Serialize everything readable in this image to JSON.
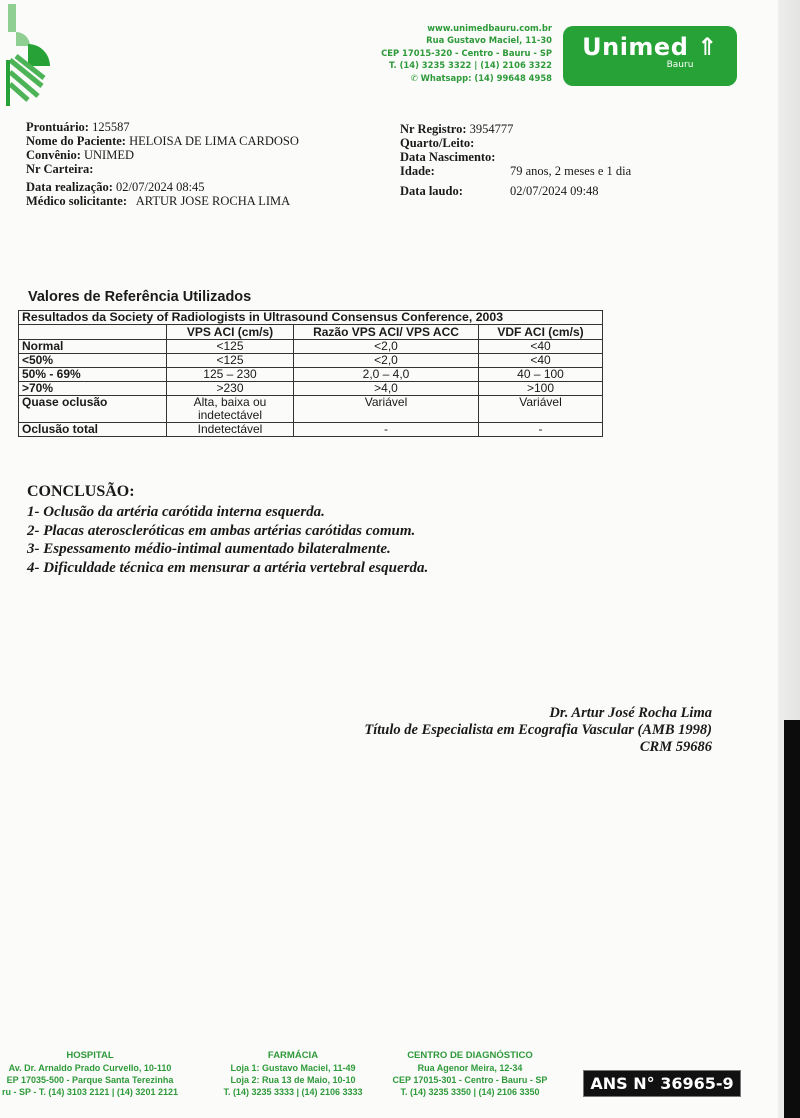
{
  "header": {
    "address_lines": [
      "www.unimedbauru.com.br",
      "Rua Gustavo Maciel, 11-30",
      "CEP 17015-320 - Centro - Bauru - SP",
      "T. (14) 3235 3322 | (14) 2106 3322"
    ],
    "whatsapp": "Whatsapp: (14) 99648 4958",
    "brand": "Unimed",
    "brand_sub": "Bauru",
    "brand_color": "#27a236"
  },
  "patient": {
    "left": [
      {
        "label": "Prontuário:",
        "value": "125587"
      },
      {
        "label": "Nome do Paciente:",
        "value": "HELOISA DE LIMA CARDOSO"
      },
      {
        "label": "Convênio:",
        "value": "UNIMED"
      },
      {
        "label": "Nr Carteira:",
        "value": ""
      },
      {
        "label": "Data realização:",
        "value": "02/07/2024 08:45"
      },
      {
        "label": "Médico solicitante:",
        "value": "ARTUR JOSE ROCHA LIMA"
      }
    ],
    "right": [
      {
        "label": "Nr Registro:",
        "value": "3954777"
      },
      {
        "label": "Quarto/Leito:",
        "value": ""
      },
      {
        "label": "Data Nascimento:",
        "value": ""
      },
      {
        "label": "Idade:",
        "value": "79 anos, 2 meses e 1 dia"
      },
      {
        "label": "Data laudo:",
        "value": "02/07/2024 09:48"
      }
    ]
  },
  "reference": {
    "title": "Valores de Referência Utilizados",
    "table_caption": "Resultados da Society of Radiologists in Ultrasound Consensus Conference, 2003",
    "columns": [
      "",
      "VPS ACI (cm/s)",
      "Razão VPS ACI/ VPS ACC",
      "VDF ACI (cm/s)"
    ],
    "rows": [
      [
        "Normal",
        "<125",
        "<2,0",
        "<40"
      ],
      [
        "<50%",
        "<125",
        "<2,0",
        "<40"
      ],
      [
        "50% - 69%",
        "125 – 230",
        "2,0 – 4,0",
        "40 – 100"
      ],
      [
        ">70%",
        ">230",
        ">4,0",
        ">100"
      ],
      [
        "Quase oclusão",
        "Alta, baixa ou indetectável",
        "Variável",
        "Variável"
      ],
      [
        "Oclusão total",
        "Indetectável",
        "-",
        "-"
      ]
    ]
  },
  "conclusion": {
    "title": "CONCLUSÃO:",
    "items": [
      "1- Oclusão da artéria carótida interna esquerda.",
      "2- Placas ateroscleróticas em ambas artérias carótidas comum.",
      "3- Espessamento médio-intimal aumentado bilateralmente.",
      "4- Dificuldade técnica em mensurar a artéria vertebral esquerda."
    ]
  },
  "signature": [
    "Dr. Artur José Rocha Lima",
    "Título de Especialista em Ecografia Vascular (AMB 1998)",
    "CRM 59686"
  ],
  "footer": {
    "hospital": [
      "HOSPITAL",
      "Av. Dr. Arnaldo Prado Curvello, 10-110",
      "EP 17035-500 - Parque Santa Terezinha",
      "ru - SP - T. (14) 3103 2121 | (14) 3201 2121"
    ],
    "farmacia": [
      "FARMÁCIA",
      "Loja 1: Gustavo Maciel, 11-49",
      "Loja 2: Rua 13 de Maio, 10-10",
      "T. (14) 3235 3333 | (14) 2106 3333"
    ],
    "diagnostico": [
      "CENTRO DE DIAGNÓSTICO",
      "Rua Agenor Meira, 12-34",
      "CEP 17015-301 - Centro - Bauru - SP",
      "T. (14) 3235 3350 | (14) 2106 3350"
    ],
    "ans": "ANS N° 36965-9"
  }
}
